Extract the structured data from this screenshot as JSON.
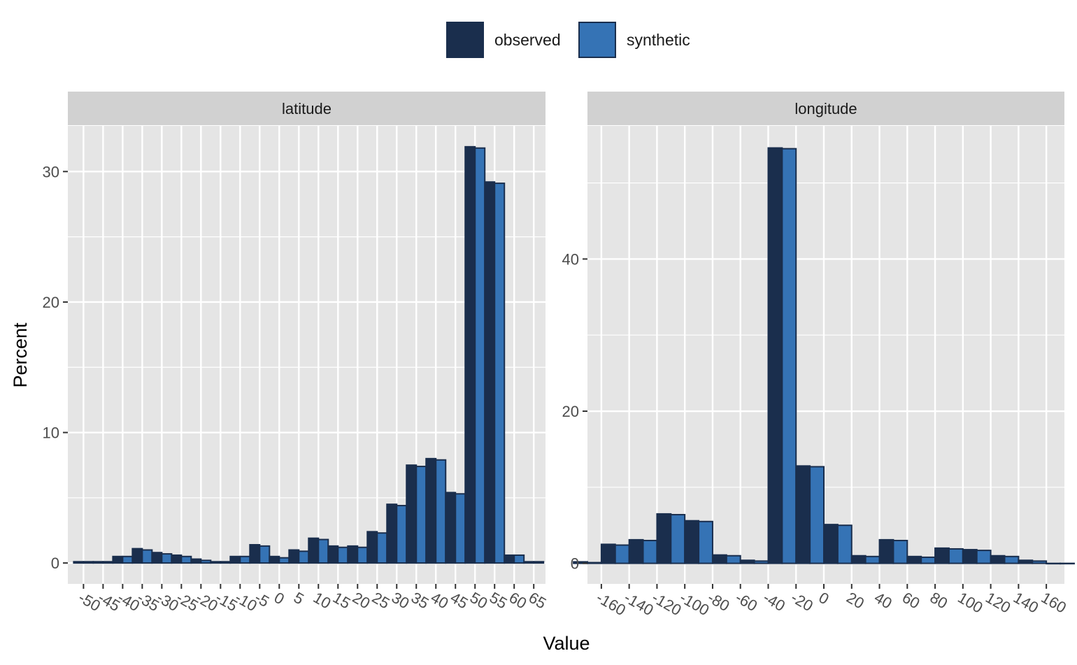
{
  "colors": {
    "observed": "#1a2e4d",
    "synthetic": "#3573b5",
    "panel_bg": "#e5e5e5",
    "strip_bg": "#d1d1d1",
    "grid": "#ffffff",
    "bar_stroke": "#1a2e4d"
  },
  "legend": {
    "items": [
      {
        "key": "observed",
        "label": "observed"
      },
      {
        "key": "synthetic",
        "label": "synthetic"
      }
    ]
  },
  "chart_data": {
    "type": "bar",
    "xlabel": "Value",
    "ylabel": "Percent",
    "legend_position": "top",
    "grid": true,
    "series_names": [
      "observed",
      "synthetic"
    ],
    "facets": [
      {
        "title": "latitude",
        "binwidth": 5,
        "x_ticks": [
          -50,
          -45,
          -40,
          -35,
          -30,
          -25,
          -20,
          -15,
          -10,
          -5,
          0,
          5,
          10,
          15,
          20,
          25,
          30,
          35,
          40,
          45,
          50,
          55,
          60,
          65
        ],
        "xlim": [
          -54,
          68
        ],
        "y_ticks": [
          0,
          10,
          20,
          30
        ],
        "ylim": [
          -1.6,
          33.5
        ],
        "x": [
          -50,
          -45,
          -40,
          -35,
          -30,
          -25,
          -20,
          -15,
          -10,
          -5,
          0,
          5,
          10,
          15,
          20,
          25,
          30,
          35,
          40,
          45,
          50,
          55,
          60,
          65
        ],
        "observed": [
          0.1,
          0.1,
          0.5,
          1.1,
          0.8,
          0.6,
          0.3,
          0.1,
          0.5,
          1.4,
          0.5,
          1.0,
          1.9,
          1.3,
          1.3,
          2.4,
          4.5,
          7.5,
          8.0,
          5.4,
          31.9,
          29.2,
          0.6,
          0.1
        ],
        "synthetic": [
          0.1,
          0.1,
          0.5,
          1.0,
          0.7,
          0.5,
          0.2,
          0.1,
          0.5,
          1.3,
          0.4,
          0.9,
          1.8,
          1.2,
          1.2,
          2.3,
          4.4,
          7.4,
          7.9,
          5.3,
          31.8,
          29.1,
          0.6,
          0.1
        ]
      },
      {
        "title": "longitude",
        "binwidth": 20,
        "x_ticks": [
          -160,
          -140,
          -120,
          -100,
          -80,
          -60,
          -40,
          -20,
          0,
          20,
          40,
          60,
          80,
          100,
          120,
          140,
          160
        ],
        "xlim": [
          -170,
          173
        ],
        "y_ticks": [
          0,
          20,
          40
        ],
        "ylim": [
          -2.7,
          57.5
        ],
        "x": [
          -170,
          -150,
          -130,
          -110,
          -90,
          -70,
          -50,
          -30,
          -10,
          10,
          30,
          50,
          70,
          90,
          110,
          130,
          150,
          170
        ],
        "observed": [
          0.2,
          2.5,
          3.1,
          6.5,
          5.6,
          1.1,
          0.4,
          54.6,
          12.8,
          5.1,
          1.0,
          3.1,
          0.9,
          2.0,
          1.8,
          1.0,
          0.4,
          0.0
        ],
        "synthetic": [
          0.1,
          2.4,
          3.0,
          6.4,
          5.5,
          1.0,
          0.3,
          54.5,
          12.7,
          5.0,
          0.9,
          3.0,
          0.8,
          1.9,
          1.7,
          0.9,
          0.3,
          0.0
        ]
      }
    ]
  }
}
